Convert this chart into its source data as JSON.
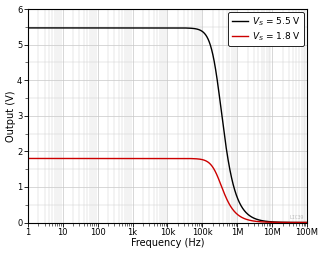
{
  "title": "",
  "xlabel": "Frequency (Hz)",
  "ylabel": "Output (V)",
  "ylim": [
    0,
    6
  ],
  "yticks": [
    0,
    1,
    2,
    3,
    4,
    5,
    6
  ],
  "xtick_labels": [
    "1",
    "10",
    "100",
    "1k",
    "10k",
    "100k",
    "1M",
    "10M",
    "100M"
  ],
  "xtick_vals": [
    1,
    10,
    100,
    1000,
    10000,
    100000,
    1000000,
    10000000,
    100000000
  ],
  "line1_color": "#000000",
  "line1_label_main": "V",
  "line1_label_sub": "S",
  "line1_label_rest": " = 5.5 V",
  "line1_flat": 5.47,
  "line1_fc": 280000,
  "line1_order": 1.6,
  "line2_color": "#cc0000",
  "line2_label_main": "V",
  "line2_label_sub": "S",
  "line2_label_rest": " = 1.8 V",
  "line2_flat": 1.8,
  "line2_fc": 280000,
  "line2_order": 1.6,
  "background_color": "#ffffff",
  "grid_color": "#c8c8c8",
  "legend_fontsize": 6.5,
  "axis_fontsize": 7,
  "tick_fontsize": 6,
  "watermark": "LIC39"
}
